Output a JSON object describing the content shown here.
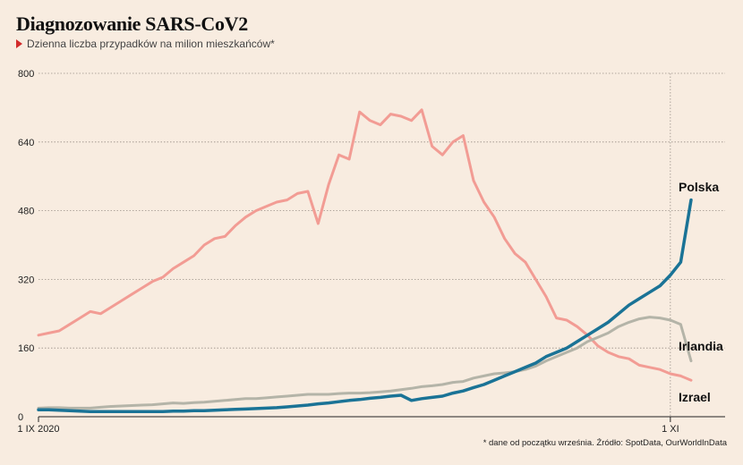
{
  "title": "Diagnozowanie SARS-CoV2",
  "subtitle": "Dzienna liczba przypadków na milion mieszkańców*",
  "source": "* dane od początku września. Źródło: SpotData, OurWorldInData",
  "colors": {
    "background": "#f8ece0",
    "Polska": "#1a7396",
    "Irlandia": "#b4b4a8",
    "Izrael": "#f29c94",
    "marker": "#d22b2b"
  },
  "chart_data": {
    "type": "line",
    "title": "Diagnozowanie SARS-CoV2",
    "subtitle": "Dzienna liczba przypadków na milion mieszkańców*",
    "xlabel": "",
    "ylabel": "",
    "ylim": [
      0,
      800
    ],
    "xlim": [
      0,
      63
    ],
    "yticks": [
      0,
      160,
      320,
      480,
      640,
      800
    ],
    "xtick_labels": [
      {
        "x": 0,
        "label": "1 IX 2020"
      },
      {
        "x": 61,
        "label": "1 XI"
      }
    ],
    "grid": true,
    "legend": "labels at line ends",
    "x": [
      0,
      1,
      2,
      3,
      4,
      5,
      6,
      7,
      8,
      9,
      10,
      11,
      12,
      13,
      14,
      15,
      16,
      17,
      18,
      19,
      20,
      21,
      22,
      23,
      24,
      25,
      26,
      27,
      28,
      29,
      30,
      31,
      32,
      33,
      34,
      35,
      36,
      37,
      38,
      39,
      40,
      41,
      42,
      43,
      44,
      45,
      46,
      47,
      48,
      49,
      50,
      51,
      52,
      53,
      54,
      55,
      56,
      57,
      58,
      59,
      60,
      61,
      62,
      63
    ],
    "series": [
      {
        "name": "Izrael",
        "values": [
          190,
          195,
          200,
          215,
          230,
          245,
          240,
          255,
          270,
          285,
          300,
          315,
          325,
          345,
          360,
          375,
          400,
          415,
          420,
          445,
          465,
          480,
          490,
          500,
          505,
          520,
          525,
          450,
          540,
          610,
          600,
          710,
          690,
          680,
          705,
          700,
          690,
          715,
          630,
          610,
          640,
          655,
          550,
          500,
          465,
          415,
          380,
          360,
          320,
          280,
          230,
          225,
          210,
          190,
          165,
          150,
          140,
          135,
          120,
          115,
          110,
          100,
          95,
          85
        ]
      },
      {
        "name": "Irlandia",
        "values": [
          20,
          21,
          21,
          20,
          20,
          20,
          22,
          24,
          25,
          26,
          27,
          28,
          30,
          32,
          31,
          33,
          34,
          36,
          38,
          40,
          42,
          42,
          44,
          46,
          48,
          50,
          52,
          52,
          52,
          54,
          55,
          55,
          56,
          58,
          60,
          63,
          66,
          70,
          72,
          75,
          80,
          82,
          90,
          95,
          100,
          102,
          105,
          110,
          118,
          130,
          140,
          150,
          160,
          175,
          185,
          195,
          210,
          220,
          228,
          232,
          230,
          225,
          215,
          130
        ]
      },
      {
        "name": "Polska",
        "values": [
          16,
          16,
          15,
          14,
          13,
          12,
          12,
          12,
          12,
          12,
          12,
          12,
          12,
          13,
          13,
          14,
          14,
          15,
          16,
          17,
          18,
          19,
          20,
          21,
          23,
          25,
          27,
          30,
          32,
          35,
          38,
          40,
          43,
          45,
          48,
          50,
          38,
          42,
          45,
          48,
          55,
          60,
          68,
          75,
          85,
          95,
          105,
          115,
          125,
          140,
          150,
          160,
          175,
          190,
          205,
          220,
          240,
          260,
          275,
          290,
          305,
          330,
          360,
          505
        ]
      }
    ],
    "series_end_labels": [
      "Polska",
      "Irlandia",
      "Izrael"
    ]
  }
}
